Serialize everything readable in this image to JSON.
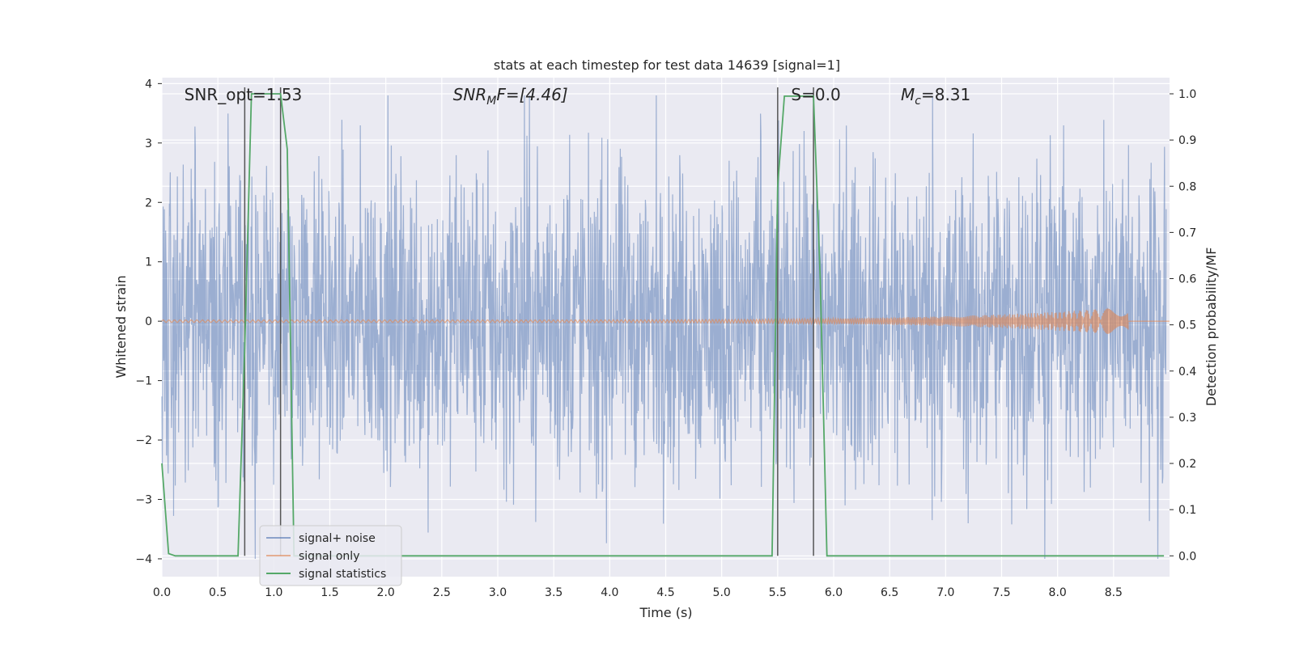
{
  "chart_data": {
    "type": "line",
    "title": "stats at each timestep for test data 14639 [signal=1]",
    "xlabel": "Time (s)",
    "ylabel": "Whitened strain",
    "y2label": "Detection probability/MF",
    "xlim": [
      0,
      9.0
    ],
    "ylim": [
      -4.3,
      4.1
    ],
    "y2lim": [
      -0.045,
      1.035
    ],
    "x_ticks": [
      "0.0",
      "0.5",
      "1.0",
      "1.5",
      "2.0",
      "2.5",
      "3.0",
      "3.5",
      "4.0",
      "4.5",
      "5.0",
      "5.5",
      "6.0",
      "6.5",
      "7.0",
      "7.5",
      "8.0",
      "8.5"
    ],
    "y_ticks": [
      "4",
      "3",
      "2",
      "1",
      "0",
      "−1",
      "−2",
      "−3",
      "−4"
    ],
    "y2_ticks": [
      "1.0",
      "0.9",
      "0.8",
      "0.7",
      "0.6",
      "0.5",
      "0.4",
      "0.3",
      "0.2",
      "0.1",
      "0.0"
    ],
    "grid": true,
    "legend_placement": "lower-left",
    "annotations": [
      {
        "text": "SNR_opt=1.53",
        "x": 0.2
      },
      {
        "text": "SNR",
        "sub": "M",
        "suffix": "F=[4.46]",
        "x": 2.6
      },
      {
        "text": "S=0.0",
        "x": 5.62
      },
      {
        "text": "M",
        "sub": "c",
        "suffix": "=8.31",
        "x": 6.6
      }
    ],
    "vlines": [
      0.74,
      1.06,
      5.5,
      5.82
    ],
    "series": [
      {
        "name": "signal+ noise",
        "color": "#4c72b0",
        "axis": "left",
        "description_range": [
          -4.0,
          3.8
        ]
      },
      {
        "name": "signal only",
        "color": "#dd8452",
        "axis": "left",
        "chirp_end": 8.63,
        "chirp_peak_amplitude": 0.22
      },
      {
        "name": "signal statistics",
        "color": "#55a868",
        "axis": "right",
        "x": [
          0.0,
          0.06,
          0.12,
          0.68,
          0.74,
          0.8,
          1.06,
          1.12,
          1.18,
          5.45,
          5.5,
          5.56,
          5.82,
          5.88,
          5.94,
          8.95
        ],
        "y": [
          0.2,
          0.005,
          0.0,
          0.0,
          0.45,
          1.0,
          1.0,
          0.88,
          0.0,
          0.0,
          0.8,
          0.995,
          0.995,
          0.6,
          0.0,
          0.0
        ]
      }
    ]
  }
}
